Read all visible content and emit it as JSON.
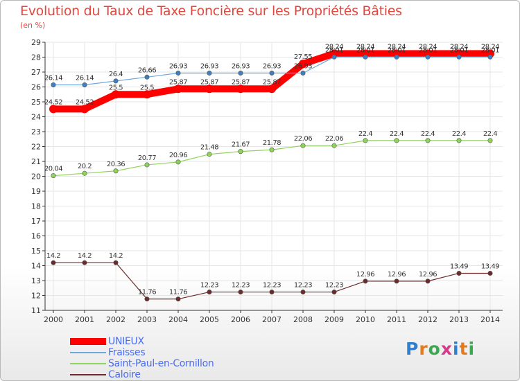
{
  "title": "Evolution du Taux de Taxe Foncière sur les Propriétés Bâties",
  "subtitle": "(en %)",
  "logo": "Proxiti",
  "chart_data": {
    "type": "line",
    "title": "Evolution du Taux de Taxe Foncière sur les Propriétés Bâties",
    "ylabel": "(en %)",
    "xlabel": "",
    "ylim": [
      11,
      29
    ],
    "yticks": [
      11,
      12,
      13,
      14,
      15,
      16,
      17,
      18,
      19,
      20,
      21,
      22,
      23,
      24,
      25,
      26,
      27,
      28,
      29
    ],
    "categories": [
      "2000",
      "2001",
      "2002",
      "2003",
      "2004",
      "2005",
      "2006",
      "2007",
      "2008",
      "2009",
      "2010",
      "2011",
      "2012",
      "2013",
      "2014"
    ],
    "series": [
      {
        "name": "Saint-Paul-en-Cornillon",
        "color": "#8fd45a",
        "marker": "#8fd45a",
        "values": [
          20.04,
          20.2,
          20.36,
          20.77,
          20.96,
          21.48,
          21.67,
          21.78,
          22.06,
          22.06,
          22.4,
          22.4,
          22.4,
          22.4,
          22.4
        ],
        "labels": [
          "20.04",
          "20.2",
          "20.36",
          "20.77",
          "20.96",
          "21.48",
          "21.67",
          "21.78",
          "22.06",
          "22.06",
          "22.4",
          "22.4",
          "22.4",
          "22.4",
          "22.4"
        ]
      },
      {
        "name": "Caloire",
        "color": "#6e2a2a",
        "marker": "#6e2a2a",
        "values": [
          14.2,
          14.2,
          14.2,
          11.76,
          11.76,
          12.23,
          12.23,
          12.23,
          12.23,
          12.23,
          12.96,
          12.96,
          12.96,
          13.49,
          13.49
        ],
        "labels": [
          "14.2",
          "14.2",
          "14.2",
          "11.76",
          "11.76",
          "12.23",
          "12.23",
          "12.23",
          "12.23",
          "12.23",
          "12.96",
          "12.96",
          "12.96",
          "13.49",
          "13.49"
        ]
      },
      {
        "name": "UNIEUX",
        "color": "#ff0000",
        "marker": "#ff0000",
        "values": [
          24.52,
          24.52,
          25.5,
          25.5,
          25.87,
          25.87,
          25.87,
          25.87,
          27.55,
          28.24,
          28.24,
          28.24,
          28.24,
          28.24,
          28.24
        ],
        "labels": [
          "24.52",
          "24.52",
          "25.5",
          "25.5",
          "25.87",
          "25.87",
          "25.87",
          "25.87",
          "27.55",
          "28.24",
          "28.24",
          "28.24",
          "28.24",
          "28.24",
          "28.24"
        ]
      },
      {
        "name": "Fraisses",
        "color": "#6fa8dc",
        "marker": "#3d7fc1",
        "values": [
          26.14,
          26.14,
          26.4,
          26.66,
          26.93,
          26.93,
          26.93,
          26.93,
          26.93,
          28.01,
          28.01,
          28.01,
          28.01,
          28.01,
          28.01
        ],
        "labels": [
          "26.14",
          "26.14",
          "26.4",
          "26.66",
          "26.93",
          "26.93",
          "26.93",
          "26.93",
          "26.93",
          "28.01",
          "28.01",
          "28.01",
          "28.01",
          "28.01",
          "28.01"
        ]
      }
    ],
    "legend": [
      {
        "name": "UNIEUX",
        "color": "#ff0000",
        "thick": true
      },
      {
        "name": "Fraisses",
        "color": "#6fa8dc",
        "thick": false
      },
      {
        "name": "Saint-Paul-en-Cornillon",
        "color": "#8fd45a",
        "thick": false
      },
      {
        "name": "Caloire",
        "color": "#6e2a2a",
        "thick": false
      }
    ],
    "legend_position": "bottom-left"
  }
}
